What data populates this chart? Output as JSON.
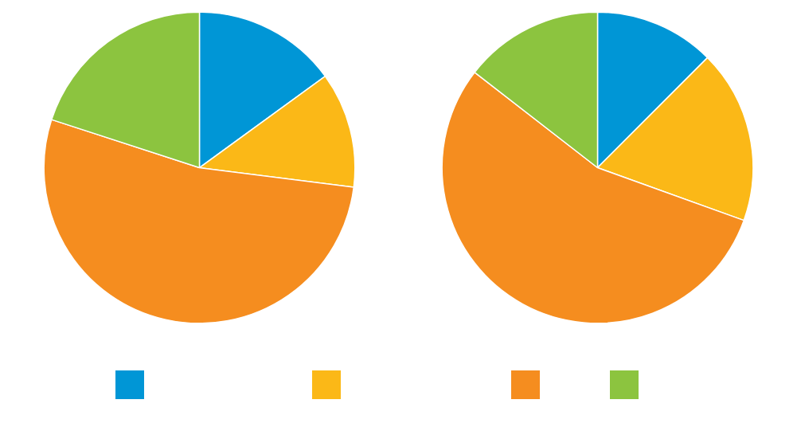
{
  "chart_data": [
    {
      "type": "pie",
      "categories": [
        null,
        null,
        null,
        null
      ],
      "values": [
        15,
        12,
        53,
        20
      ],
      "colors": [
        "#0096d6",
        "#fbb817",
        "#f58d1f",
        "#8cc43f"
      ]
    },
    {
      "type": "pie",
      "categories": [
        null,
        null,
        null,
        null
      ],
      "values": [
        12.5,
        18,
        55,
        14.5
      ],
      "colors": [
        "#0096d6",
        "#fbb817",
        "#f58d1f",
        "#8cc43f"
      ]
    }
  ]
}
